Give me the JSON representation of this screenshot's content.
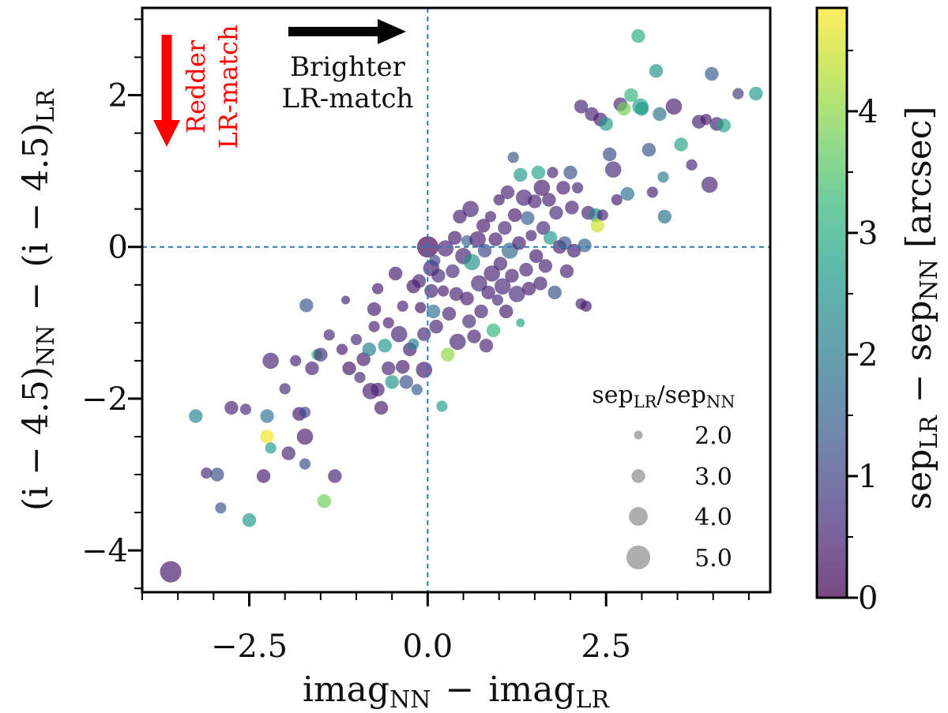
{
  "colors": {
    "axis": "#000000",
    "refline": "#2a7ab5",
    "red_arrow": "#ff0000",
    "legend_marker": "#a0a0a0",
    "viridis": [
      "#440154",
      "#482878",
      "#3e4989",
      "#31688e",
      "#26828e",
      "#1f9e89",
      "#35b779",
      "#6ece58",
      "#b5de2b",
      "#fde725"
    ]
  },
  "chart_data": {
    "type": "scatter",
    "title": "",
    "xlabel": {
      "base1": "imag",
      "sub1": "NN",
      "op": "−",
      "base2": "imag",
      "sub2": "LR"
    },
    "ylabel": {
      "left": "(i − 4.5)",
      "sub1": "NN",
      "op": "−",
      "right": "(i − 4.5)",
      "sub2": "LR"
    },
    "xlim": [
      -4.0,
      4.8
    ],
    "ylim": [
      -4.55,
      3.15
    ],
    "xticks": [
      "−2.5",
      "0.0",
      "2.5"
    ],
    "xtick_values": [
      -2.5,
      0.0,
      2.5
    ],
    "yticks": [
      "−4",
      "−2",
      "0",
      "2"
    ],
    "ytick_values": [
      -4,
      -2,
      0,
      2
    ],
    "reference_lines": {
      "x": 0,
      "y": 0
    },
    "colorbar": {
      "label_base1": "sep",
      "label_sub1": "LR",
      "label_op": "−",
      "label_base2": "sep",
      "label_sub2": "NN",
      "label_unit": "[arcsec]",
      "range": [
        0,
        4.85
      ],
      "ticks": [
        "0",
        "1",
        "2",
        "3",
        "4"
      ],
      "tick_values": [
        0,
        1,
        2,
        3,
        4
      ]
    },
    "legend": {
      "title_base1": "sep",
      "title_sub1": "LR",
      "title_slash": "/",
      "title_base2": "sep",
      "title_sub2": "NN",
      "placement": "lower-right",
      "entries": [
        "2.0",
        "3.0",
        "4.0",
        "5.0"
      ],
      "entry_values": [
        2.0,
        3.0,
        4.0,
        5.0
      ]
    },
    "annotations": {
      "brighter_line1": "Brighter",
      "brighter_line2": "LR-match",
      "redder_line1": "Redder",
      "redder_line2": "LR-match"
    },
    "points": [
      [
        -3.6,
        -4.28,
        0.3,
        4.5
      ],
      [
        -3.25,
        -2.23,
        2.2,
        3.0
      ],
      [
        -3.1,
        -2.98,
        0.6,
        2.5
      ],
      [
        -2.95,
        -3.0,
        1.2,
        3.0
      ],
      [
        -2.9,
        -3.44,
        1.3,
        2.5
      ],
      [
        -2.75,
        -2.12,
        0.5,
        3.0
      ],
      [
        -2.55,
        -2.14,
        0.6,
        2.5
      ],
      [
        -2.5,
        -3.6,
        2.6,
        3.0
      ],
      [
        -2.3,
        -3.02,
        0.4,
        3.0
      ],
      [
        -2.25,
        -2.5,
        4.8,
        3.0
      ],
      [
        -2.25,
        -2.23,
        1.9,
        3.0
      ],
      [
        -2.2,
        -2.65,
        2.7,
        2.5
      ],
      [
        -2.2,
        -1.5,
        0.5,
        3.5
      ],
      [
        -2.0,
        -1.87,
        0.6,
        2.5
      ],
      [
        -1.95,
        -2.72,
        0.5,
        3.0
      ],
      [
        -1.85,
        -1.5,
        0.5,
        2.5
      ],
      [
        -1.8,
        -2.2,
        0.3,
        3.0
      ],
      [
        -1.72,
        -2.5,
        0.4,
        3.5
      ],
      [
        -1.72,
        -2.86,
        1.1,
        2.5
      ],
      [
        -1.72,
        -2.18,
        1.2,
        2.5
      ],
      [
        -1.7,
        -0.77,
        1.3,
        3.0
      ],
      [
        -1.62,
        -1.6,
        0.5,
        3.0
      ],
      [
        -1.55,
        -1.42,
        3.2,
        2.5
      ],
      [
        -1.5,
        -1.42,
        0.7,
        3.0
      ],
      [
        -1.45,
        -3.35,
        3.8,
        3.0
      ],
      [
        -1.38,
        -1.16,
        0.6,
        2.5
      ],
      [
        -1.3,
        -3.02,
        0.5,
        3.0
      ],
      [
        -1.2,
        -1.35,
        0.4,
        2.5
      ],
      [
        -1.15,
        -0.7,
        0.5,
        2.0
      ],
      [
        -1.1,
        -1.6,
        0.3,
        3.0
      ],
      [
        -1.0,
        -1.22,
        0.6,
        2.5
      ],
      [
        -0.95,
        -1.72,
        0.6,
        2.5
      ],
      [
        -0.9,
        -1.48,
        0.4,
        3.0
      ],
      [
        -0.82,
        -1.35,
        2.1,
        3.0
      ],
      [
        -0.8,
        -1.9,
        0.4,
        3.5
      ],
      [
        -0.75,
        -0.82,
        0.4,
        3.0
      ],
      [
        -0.75,
        -1.05,
        0.5,
        2.5
      ],
      [
        -0.7,
        -1.88,
        0.5,
        3.0
      ],
      [
        -0.7,
        -0.55,
        0.4,
        2.5
      ],
      [
        -0.65,
        -2.12,
        0.4,
        3.0
      ],
      [
        -0.6,
        -1.3,
        2.6,
        3.0
      ],
      [
        -0.55,
        -1.6,
        0.5,
        3.0
      ],
      [
        -0.55,
        -1.0,
        0.4,
        2.5
      ],
      [
        -0.5,
        -1.78,
        2.5,
        3.0
      ],
      [
        -0.45,
        -0.35,
        0.4,
        3.0
      ],
      [
        -0.4,
        -1.15,
        0.5,
        3.5
      ],
      [
        -0.35,
        -1.58,
        0.4,
        3.0
      ],
      [
        -0.35,
        -0.78,
        0.5,
        2.5
      ],
      [
        -0.3,
        -1.78,
        1.2,
        3.0
      ],
      [
        -0.25,
        -1.35,
        0.4,
        3.0
      ],
      [
        -0.2,
        -0.52,
        0.3,
        3.0
      ],
      [
        -0.2,
        -1.28,
        2.2,
        2.5
      ],
      [
        -0.15,
        -1.88,
        1.4,
        2.5
      ],
      [
        -0.12,
        -0.45,
        0.5,
        3.0
      ],
      [
        -0.1,
        -0.8,
        0.3,
        2.5
      ],
      [
        -0.05,
        -1.62,
        0.4,
        3.5
      ],
      [
        -0.05,
        -1.15,
        0.6,
        3.0
      ],
      [
        0.0,
        0.0,
        0.0,
        4.5
      ],
      [
        0.05,
        -0.28,
        0.4,
        3.5
      ],
      [
        0.05,
        -0.58,
        0.5,
        3.0
      ],
      [
        0.08,
        -0.85,
        1.8,
        3.0
      ],
      [
        0.1,
        -0.18,
        1.1,
        2.5
      ],
      [
        0.12,
        -1.05,
        0.5,
        3.0
      ],
      [
        0.15,
        -0.38,
        0.6,
        3.0
      ],
      [
        0.2,
        -2.1,
        2.7,
        2.5
      ],
      [
        0.22,
        -0.58,
        0.4,
        2.5
      ],
      [
        0.25,
        -0.02,
        0.5,
        3.5
      ],
      [
        0.28,
        -1.42,
        4.0,
        3.0
      ],
      [
        0.3,
        -0.88,
        0.5,
        3.0
      ],
      [
        0.35,
        -0.32,
        0.6,
        3.0
      ],
      [
        0.38,
        0.12,
        0.4,
        3.0
      ],
      [
        0.4,
        -0.62,
        0.5,
        3.0
      ],
      [
        0.42,
        -1.25,
        0.5,
        3.5
      ],
      [
        0.45,
        0.4,
        0.4,
        3.0
      ],
      [
        0.5,
        -0.12,
        0.5,
        3.5
      ],
      [
        0.55,
        0.08,
        1.5,
        2.5
      ],
      [
        0.55,
        -0.68,
        0.4,
        3.0
      ],
      [
        0.58,
        -0.98,
        0.6,
        3.0
      ],
      [
        0.6,
        0.5,
        0.5,
        3.5
      ],
      [
        0.62,
        -0.2,
        2.5,
        3.5
      ],
      [
        0.65,
        -1.18,
        0.5,
        3.0
      ],
      [
        0.7,
        0.1,
        0.4,
        3.5
      ],
      [
        0.72,
        -0.48,
        0.6,
        3.5
      ],
      [
        0.75,
        -0.85,
        0.5,
        3.0
      ],
      [
        0.78,
        0.28,
        0.4,
        3.0
      ],
      [
        0.8,
        -0.05,
        1.0,
        3.0
      ],
      [
        0.82,
        -1.3,
        0.5,
        3.0
      ],
      [
        0.85,
        -0.6,
        0.4,
        3.0
      ],
      [
        0.88,
        0.4,
        0.5,
        2.5
      ],
      [
        0.9,
        -0.35,
        0.5,
        3.5
      ],
      [
        0.92,
        -1.1,
        3.2,
        3.0
      ],
      [
        0.95,
        0.1,
        0.4,
        3.0
      ],
      [
        0.98,
        -0.7,
        0.6,
        2.5
      ],
      [
        1.0,
        0.62,
        0.4,
        2.5
      ],
      [
        1.02,
        -0.22,
        0.5,
        3.0
      ],
      [
        1.05,
        -0.52,
        0.5,
        3.5
      ],
      [
        1.08,
        0.25,
        0.6,
        3.0
      ],
      [
        1.1,
        -0.85,
        0.4,
        3.0
      ],
      [
        1.12,
        0.72,
        0.5,
        3.0
      ],
      [
        1.15,
        -0.05,
        1.6,
        3.5
      ],
      [
        1.18,
        -0.38,
        0.5,
        3.0
      ],
      [
        1.2,
        1.18,
        1.3,
        2.5
      ],
      [
        1.22,
        0.42,
        0.4,
        3.0
      ],
      [
        1.25,
        -0.62,
        0.6,
        3.5
      ],
      [
        1.28,
        0.05,
        0.4,
        3.0
      ],
      [
        1.3,
        -1.0,
        2.8,
        2.0
      ],
      [
        1.3,
        0.95,
        2.6,
        3.0
      ],
      [
        1.35,
        0.65,
        0.5,
        3.5
      ],
      [
        1.38,
        -0.3,
        0.5,
        3.0
      ],
      [
        1.4,
        0.38,
        1.4,
        3.0
      ],
      [
        1.42,
        -0.55,
        0.4,
        3.0
      ],
      [
        1.45,
        0.15,
        0.5,
        2.5
      ],
      [
        1.5,
        0.6,
        0.5,
        3.0
      ],
      [
        1.52,
        -0.12,
        0.4,
        3.0
      ],
      [
        1.55,
        0.98,
        2.8,
        3.0
      ],
      [
        1.58,
        -0.48,
        0.5,
        3.0
      ],
      [
        1.6,
        0.78,
        0.4,
        3.5
      ],
      [
        1.62,
        0.25,
        0.6,
        3.0
      ],
      [
        1.65,
        -0.25,
        0.5,
        3.0
      ],
      [
        1.7,
        0.62,
        0.5,
        3.0
      ],
      [
        1.72,
        0.12,
        2.6,
        3.0
      ],
      [
        1.75,
        0.98,
        0.5,
        2.5
      ],
      [
        1.78,
        -0.6,
        1.2,
        3.0
      ],
      [
        1.8,
        0.45,
        0.6,
        3.0
      ],
      [
        1.85,
        0.0,
        0.5,
        3.0
      ],
      [
        1.9,
        0.78,
        0.4,
        3.0
      ],
      [
        1.92,
        0.05,
        1.3,
        3.0
      ],
      [
        1.95,
        -0.32,
        0.5,
        3.0
      ],
      [
        2.0,
        0.98,
        1.2,
        3.0
      ],
      [
        2.02,
        0.52,
        0.5,
        3.0
      ],
      [
        2.05,
        -0.05,
        0.4,
        3.0
      ],
      [
        2.1,
        0.78,
        0.5,
        2.5
      ],
      [
        2.15,
        1.85,
        0.5,
        3.0
      ],
      [
        2.15,
        -0.75,
        0.5,
        2.5
      ],
      [
        2.2,
        0.02,
        1.5,
        3.0
      ],
      [
        2.22,
        -0.78,
        0.4,
        2.5
      ],
      [
        2.25,
        0.45,
        0.5,
        3.0
      ],
      [
        2.3,
        1.75,
        0.5,
        3.0
      ],
      [
        2.35,
        0.42,
        2.2,
        3.0
      ],
      [
        2.38,
        0.28,
        4.5,
        3.0
      ],
      [
        2.42,
        1.68,
        0.4,
        3.0
      ],
      [
        2.45,
        0.42,
        0.5,
        2.5
      ],
      [
        2.5,
        1.62,
        2.6,
        3.0
      ],
      [
        2.55,
        1.22,
        1.2,
        3.0
      ],
      [
        2.6,
        1.02,
        0.6,
        3.5
      ],
      [
        2.65,
        0.62,
        0.4,
        2.5
      ],
      [
        2.7,
        1.88,
        0.5,
        3.0
      ],
      [
        2.75,
        1.82,
        3.8,
        3.0
      ],
      [
        2.8,
        0.7,
        1.8,
        3.0
      ],
      [
        2.85,
        2.0,
        3.2,
        3.0
      ],
      [
        2.95,
        2.78,
        3.0,
        3.0
      ],
      [
        2.98,
        1.85,
        2.8,
        3.5
      ],
      [
        3.0,
        1.82,
        2.6,
        3.0
      ],
      [
        3.1,
        1.28,
        1.3,
        3.0
      ],
      [
        3.15,
        0.72,
        0.5,
        2.5
      ],
      [
        3.2,
        2.32,
        2.5,
        3.0
      ],
      [
        3.25,
        1.75,
        1.8,
        3.0
      ],
      [
        3.3,
        0.92,
        2.0,
        2.5
      ],
      [
        3.32,
        0.4,
        1.8,
        3.0
      ],
      [
        3.45,
        1.85,
        0.4,
        3.5
      ],
      [
        3.55,
        1.35,
        2.8,
        3.0
      ],
      [
        3.7,
        1.08,
        0.5,
        2.5
      ],
      [
        3.8,
        1.65,
        0.5,
        3.0
      ],
      [
        3.9,
        1.68,
        0.4,
        2.5
      ],
      [
        3.95,
        0.82,
        0.5,
        3.5
      ],
      [
        3.98,
        2.28,
        1.4,
        3.0
      ],
      [
        4.05,
        1.62,
        0.5,
        3.0
      ],
      [
        4.15,
        1.6,
        2.8,
        3.0
      ],
      [
        4.35,
        2.02,
        0.8,
        2.5
      ],
      [
        4.6,
        2.02,
        2.6,
        3.0
      ]
    ]
  }
}
